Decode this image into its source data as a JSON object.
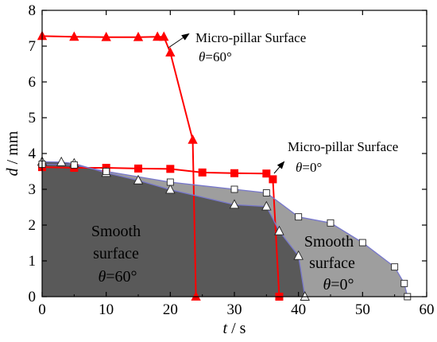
{
  "chart_data": {
    "type": "line",
    "xlabel_var": "t",
    "xlabel_unit": " / s",
    "ylabel_var": "d",
    "ylabel_unit": " / mm",
    "xlim": [
      0,
      60
    ],
    "ylim": [
      0,
      8
    ],
    "xticks": [
      0,
      10,
      20,
      30,
      40,
      50,
      60
    ],
    "yticks": [
      0,
      1,
      2,
      3,
      4,
      5,
      6,
      7,
      8
    ],
    "grid": false,
    "series": [
      {
        "key": "pillar60",
        "color": "#ff0000",
        "marker": "triangle-filled",
        "x": [
          0,
          5,
          10,
          15,
          18,
          19,
          20,
          23.5,
          24
        ],
        "y": [
          7.28,
          7.26,
          7.25,
          7.25,
          7.26,
          7.26,
          6.82,
          4.38,
          0
        ]
      },
      {
        "key": "pillar0",
        "color": "#ff0000",
        "marker": "square-filled",
        "x": [
          0,
          5,
          10,
          15,
          20,
          25,
          30,
          35,
          36,
          37
        ],
        "y": [
          3.62,
          3.6,
          3.6,
          3.58,
          3.57,
          3.47,
          3.45,
          3.44,
          3.28,
          0
        ]
      },
      {
        "key": "smooth60",
        "color": "#7777cc",
        "marker": "triangle-open",
        "area_fill": "#595959",
        "x": [
          0,
          3,
          5,
          10,
          15,
          20,
          30,
          35,
          37,
          40,
          41
        ],
        "y": [
          3.77,
          3.76,
          3.72,
          3.46,
          3.25,
          2.99,
          2.57,
          2.52,
          1.83,
          1.14,
          0
        ]
      },
      {
        "key": "smooth0",
        "color": "#7777cc",
        "marker": "square-open",
        "area_fill": "#9e9e9e",
        "x": [
          0,
          5,
          10,
          20,
          30,
          35,
          40,
          45,
          50,
          55,
          56.5,
          57
        ],
        "y": [
          3.7,
          3.68,
          3.5,
          3.2,
          3.0,
          2.9,
          2.23,
          2.06,
          1.51,
          0.83,
          0.37,
          0
        ]
      }
    ],
    "annotations": {
      "pillar60_line1": "Micro-pillar Surface",
      "pillar60_theta": "θ",
      "pillar60_value": "=60°",
      "pillar0_line1": "Micro-pillar Surface",
      "pillar0_theta": "θ",
      "pillar0_value": "=0°",
      "smooth60_line1": "Smooth",
      "smooth60_line2": "surface",
      "smooth60_theta": "θ",
      "smooth60_value": "=60°",
      "smooth0_line1": "Smooth",
      "smooth0_line2": "surface",
      "smooth0_theta": "θ",
      "smooth0_value": "=0°"
    }
  }
}
